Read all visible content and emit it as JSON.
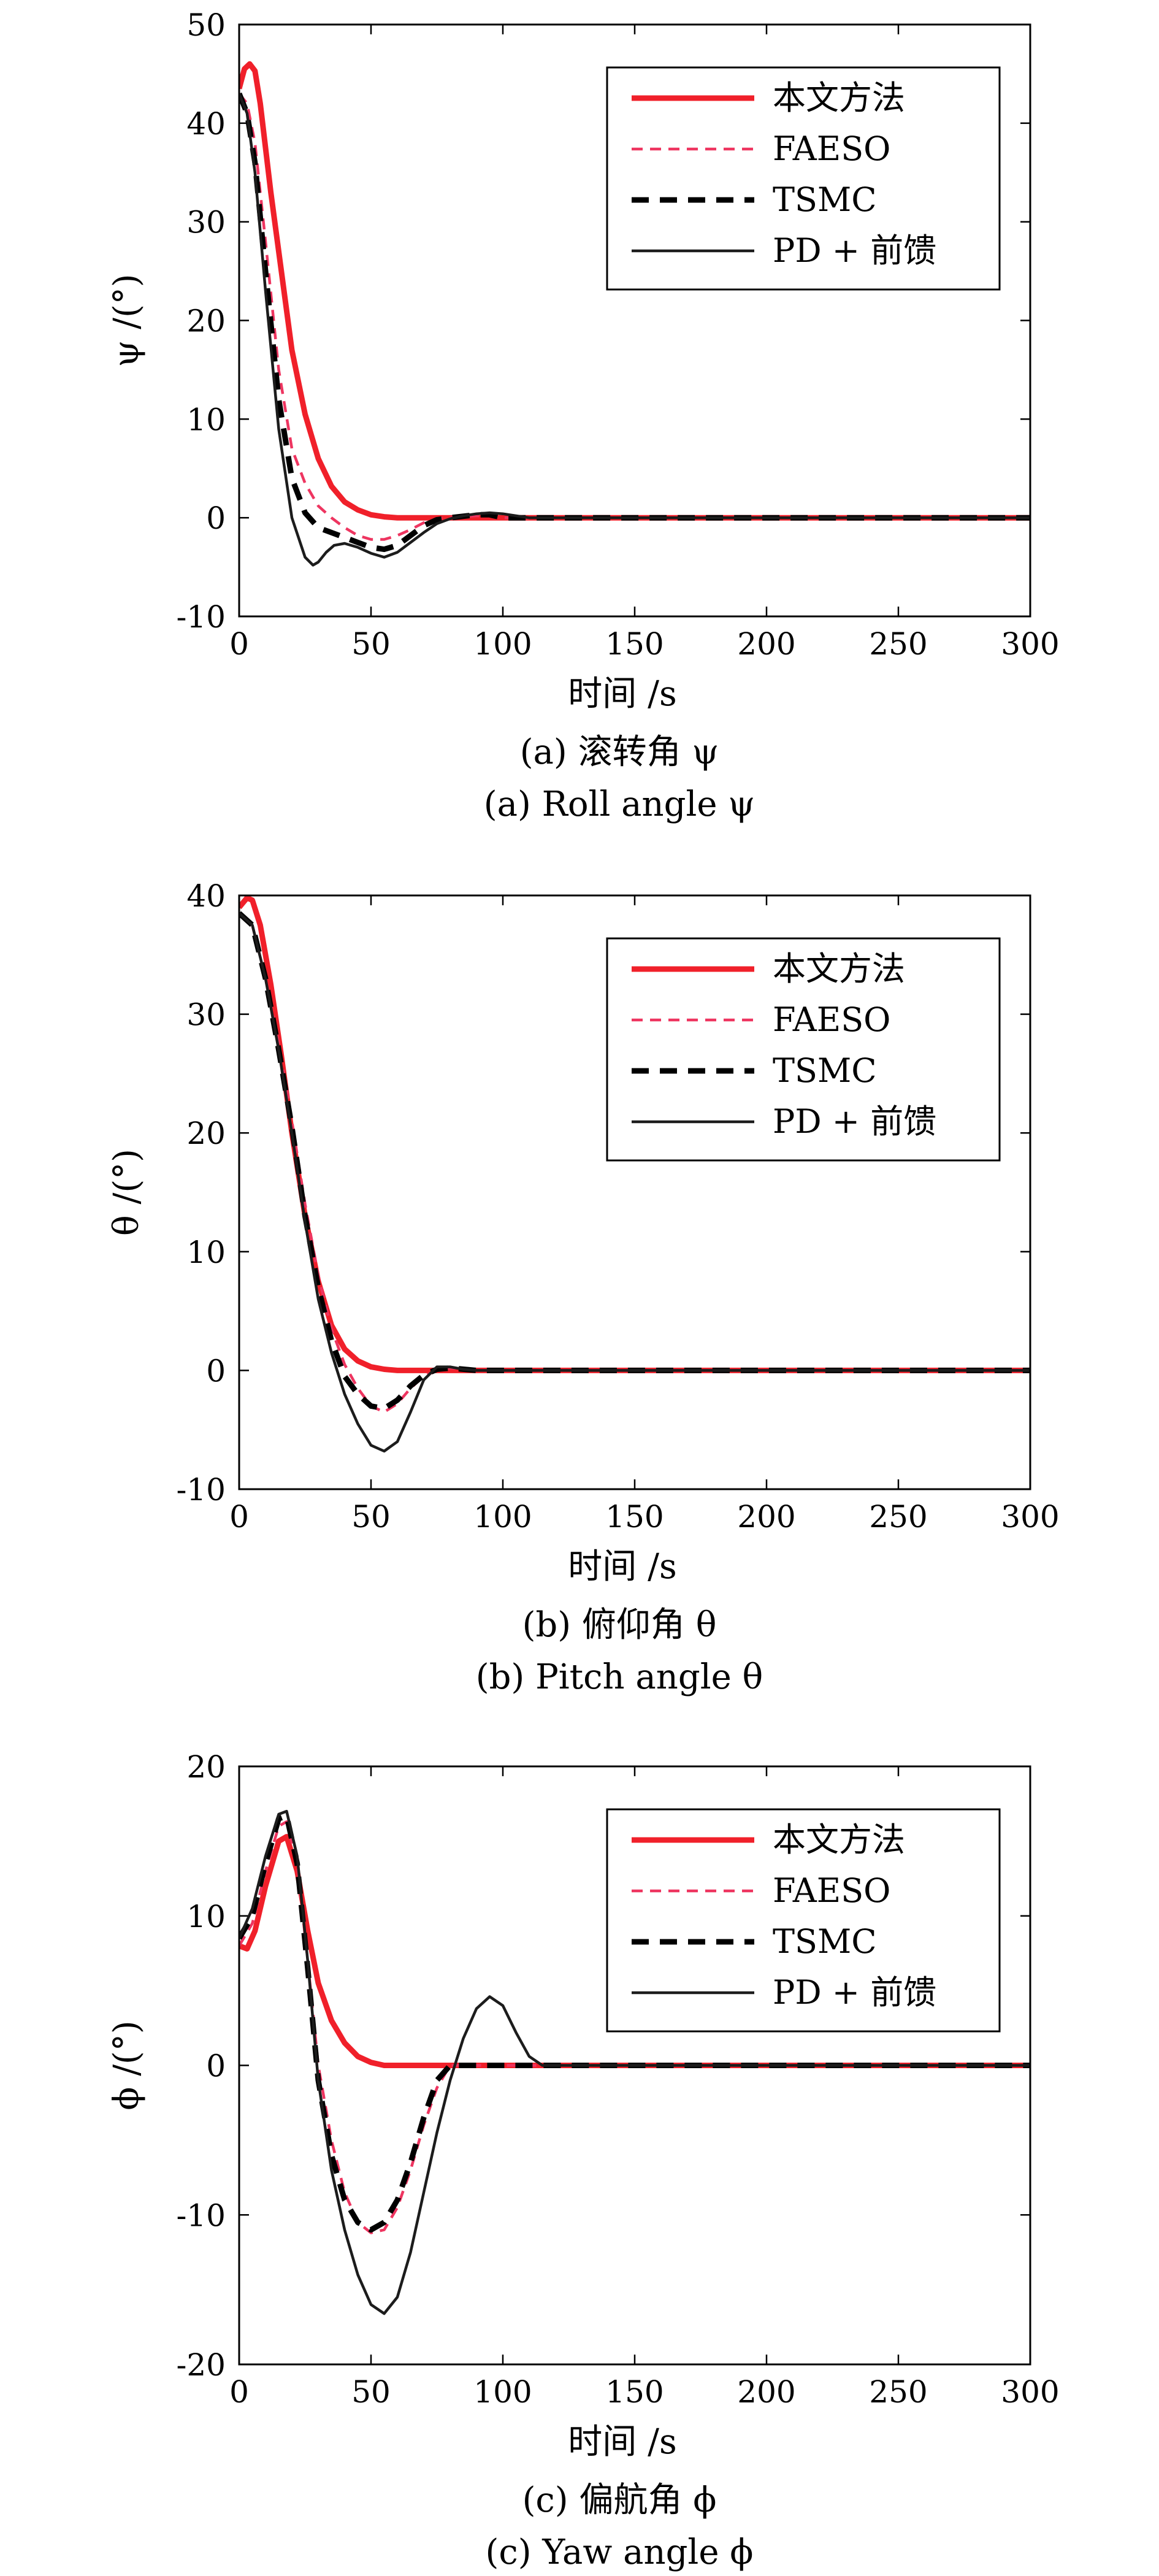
{
  "colors": {
    "proposed": "#f0202a",
    "faeso": "#ee3560",
    "tsmc": "#000000",
    "pd": "#1c1c1c"
  },
  "chart_data": [
    {
      "type": "line",
      "xlabel": "时间 /s",
      "ylabel": "ψ /(°)",
      "caption_cn": "(a) 滚转角 ψ",
      "caption_en": "(a) Roll angle ψ",
      "xlim": [
        0,
        300
      ],
      "ylim": [
        -10,
        50
      ],
      "xticks": [
        0,
        50,
        100,
        150,
        200,
        250,
        300
      ],
      "yticks": [
        -10,
        0,
        10,
        20,
        30,
        40,
        50
      ],
      "legend_position": "top-right",
      "series": [
        {
          "name": "本文方法",
          "style": "solid-thick",
          "color_key": "proposed",
          "x": [
            0,
            2,
            4,
            6,
            8,
            12,
            16,
            20,
            25,
            30,
            35,
            40,
            45,
            50,
            55,
            60,
            70,
            80,
            100,
            300
          ],
          "y": [
            43.5,
            45.5,
            46,
            45.3,
            42,
            33,
            25,
            17,
            10.5,
            6,
            3.2,
            1.6,
            0.8,
            0.3,
            0.1,
            0,
            0,
            0,
            0,
            0
          ]
        },
        {
          "name": "FAESO",
          "style": "dashed",
          "color_key": "faeso",
          "x": [
            0,
            3,
            6,
            10,
            15,
            20,
            25,
            30,
            35,
            40,
            45,
            50,
            55,
            60,
            65,
            70,
            75,
            80,
            90,
            95,
            100,
            110,
            300
          ],
          "y": [
            43,
            42,
            38,
            28,
            15,
            7,
            3.5,
            1.2,
            0,
            -1,
            -1.8,
            -2.2,
            -2.2,
            -1.8,
            -1.2,
            -0.5,
            -0.1,
            0,
            0.2,
            0.2,
            0,
            0,
            0
          ]
        },
        {
          "name": "TSMC",
          "style": "dashed-thick",
          "color_key": "tsmc",
          "x": [
            0,
            3,
            6,
            10,
            15,
            20,
            25,
            30,
            35,
            40,
            45,
            50,
            55,
            60,
            65,
            70,
            75,
            80,
            90,
            95,
            100,
            110,
            300
          ],
          "y": [
            43,
            41,
            36,
            25,
            12,
            4,
            0.5,
            -1,
            -1.5,
            -2,
            -2.5,
            -3,
            -3.2,
            -2.8,
            -1.8,
            -0.8,
            -0.2,
            0,
            0.3,
            0.3,
            0,
            0,
            0
          ]
        },
        {
          "name": "PD + 前馈",
          "style": "solid",
          "color_key": "pd",
          "x": [
            0,
            3,
            6,
            10,
            15,
            20,
            25,
            28,
            30,
            33,
            36,
            40,
            45,
            50,
            55,
            60,
            65,
            70,
            75,
            80,
            85,
            90,
            95,
            100,
            105,
            110,
            120,
            300
          ],
          "y": [
            43,
            41,
            35,
            23,
            9,
            0,
            -4,
            -4.8,
            -4.5,
            -3.5,
            -2.8,
            -2.6,
            -3,
            -3.6,
            -4,
            -3.5,
            -2.5,
            -1.5,
            -0.6,
            -0.1,
            0.2,
            0.4,
            0.5,
            0.4,
            0.2,
            0,
            0,
            0
          ]
        }
      ]
    },
    {
      "type": "line",
      "xlabel": "时间 /s",
      "ylabel": "θ /(°)",
      "caption_cn": "(b) 俯仰角 θ",
      "caption_en": "(b) Pitch angle θ",
      "xlim": [
        0,
        300
      ],
      "ylim": [
        -10,
        40
      ],
      "xticks": [
        0,
        50,
        100,
        150,
        200,
        250,
        300
      ],
      "yticks": [
        -10,
        0,
        10,
        20,
        30,
        40
      ],
      "legend_position": "top-right",
      "series": [
        {
          "name": "本文方法",
          "style": "solid-thick",
          "color_key": "proposed",
          "x": [
            0,
            3,
            5,
            8,
            12,
            16,
            20,
            25,
            30,
            35,
            40,
            45,
            50,
            55,
            60,
            70,
            80,
            300
          ],
          "y": [
            39,
            39.8,
            39.6,
            37.5,
            32.5,
            26.5,
            20,
            13,
            7.5,
            3.8,
            1.8,
            0.8,
            0.3,
            0.1,
            0,
            0,
            0,
            0
          ]
        },
        {
          "name": "FAESO",
          "style": "dashed",
          "color_key": "faeso",
          "x": [
            0,
            5,
            10,
            15,
            20,
            25,
            30,
            35,
            40,
            45,
            50,
            55,
            60,
            65,
            70,
            75,
            80,
            90,
            300
          ],
          "y": [
            38.5,
            37.5,
            33,
            27.5,
            21,
            14,
            8,
            3.5,
            0.5,
            -1.5,
            -3,
            -3.5,
            -2.8,
            -1.5,
            -0.5,
            0,
            0.2,
            0,
            0
          ]
        },
        {
          "name": "TSMC",
          "style": "dashed-thick",
          "color_key": "tsmc",
          "x": [
            0,
            5,
            10,
            15,
            20,
            25,
            30,
            35,
            40,
            45,
            50,
            55,
            60,
            65,
            70,
            75,
            80,
            90,
            300
          ],
          "y": [
            38.5,
            37.5,
            33,
            27,
            20.5,
            13,
            7,
            2.5,
            -0.5,
            -2,
            -3,
            -3.2,
            -2.5,
            -1.3,
            -0.4,
            0.1,
            0.2,
            0,
            0
          ]
        },
        {
          "name": "PD + 前馈",
          "style": "solid",
          "color_key": "pd",
          "x": [
            0,
            5,
            10,
            15,
            20,
            25,
            30,
            35,
            40,
            45,
            50,
            55,
            60,
            65,
            70,
            75,
            80,
            85,
            90,
            300
          ],
          "y": [
            38.5,
            37.5,
            33,
            27,
            20,
            12.5,
            6,
            1.5,
            -2,
            -4.5,
            -6.3,
            -6.8,
            -6,
            -3.5,
            -0.8,
            0.3,
            0.3,
            0.1,
            0,
            0
          ]
        }
      ]
    },
    {
      "type": "line",
      "xlabel": "时间 /s",
      "ylabel": "ϕ /(°)",
      "caption_cn": "(c) 偏航角 ϕ",
      "caption_en": "(c) Yaw angle ϕ",
      "xlim": [
        0,
        300
      ],
      "ylim": [
        -20,
        20
      ],
      "xticks": [
        0,
        50,
        100,
        150,
        200,
        250,
        300
      ],
      "yticks": [
        -20,
        -10,
        0,
        10,
        20
      ],
      "legend_position": "top-right",
      "series": [
        {
          "name": "本文方法",
          "style": "solid-thick",
          "color_key": "proposed",
          "x": [
            0,
            3,
            6,
            10,
            15,
            18,
            22,
            26,
            30,
            35,
            40,
            45,
            50,
            55,
            60,
            70,
            80,
            300
          ],
          "y": [
            8,
            7.8,
            9,
            12,
            15,
            15.3,
            13,
            9,
            5.5,
            3,
            1.5,
            0.6,
            0.2,
            0,
            0,
            0,
            0,
            0
          ]
        },
        {
          "name": "FAESO",
          "style": "dashed",
          "color_key": "faeso",
          "x": [
            0,
            5,
            10,
            15,
            18,
            22,
            26,
            30,
            35,
            40,
            45,
            50,
            55,
            60,
            65,
            70,
            75,
            80,
            90,
            300
          ],
          "y": [
            8,
            9.5,
            13,
            16,
            16.3,
            13.5,
            7,
            0,
            -5,
            -8.5,
            -10.5,
            -11.2,
            -11,
            -9.5,
            -7,
            -4,
            -1.5,
            0,
            0,
            0
          ]
        },
        {
          "name": "TSMC",
          "style": "dashed-thick",
          "color_key": "tsmc",
          "x": [
            0,
            5,
            10,
            15,
            18,
            22,
            26,
            30,
            35,
            40,
            45,
            50,
            55,
            60,
            65,
            70,
            75,
            80,
            90,
            300
          ],
          "y": [
            8.5,
            10,
            13.5,
            16.5,
            16.7,
            13.5,
            6.5,
            -1,
            -6,
            -9,
            -10.5,
            -11,
            -10.5,
            -9,
            -6.5,
            -3.5,
            -1,
            0,
            0,
            0
          ]
        },
        {
          "name": "PD + 前馈",
          "style": "solid",
          "color_key": "pd",
          "x": [
            0,
            5,
            10,
            15,
            18,
            22,
            26,
            30,
            35,
            40,
            45,
            50,
            55,
            60,
            65,
            70,
            75,
            80,
            85,
            90,
            95,
            100,
            105,
            110,
            115,
            120,
            300
          ],
          "y": [
            8.5,
            10.5,
            14,
            16.8,
            17,
            14,
            7,
            -1,
            -7,
            -11,
            -14,
            -16,
            -16.6,
            -15.5,
            -12.5,
            -8.5,
            -4.5,
            -1,
            1.8,
            3.8,
            4.6,
            4,
            2.2,
            0.6,
            0,
            0,
            0
          ]
        }
      ]
    }
  ]
}
